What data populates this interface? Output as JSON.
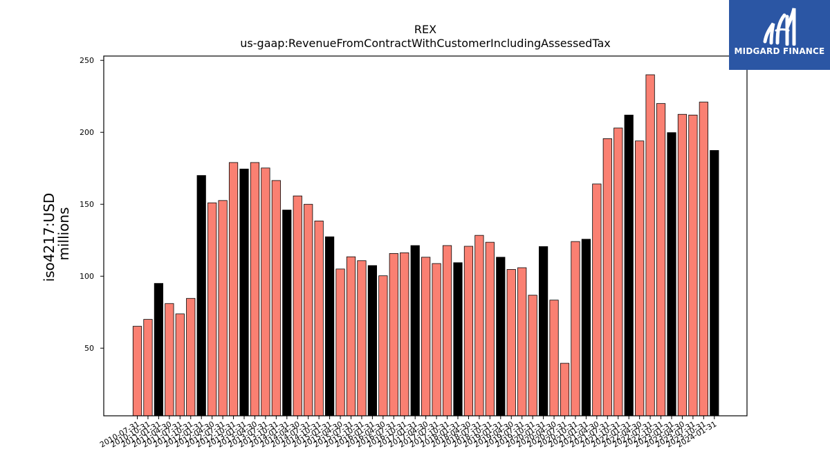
{
  "brand": {
    "name": "MIDGARD FINANCE",
    "color": "#2b56a4"
  },
  "chart_data": {
    "type": "bar",
    "title": "REX",
    "subtitle": "us-gaap:RevenueFromContractWithCustomerIncludingAssessedTax",
    "ylabel": [
      "iso4217:USD",
      "millions"
    ],
    "xlabel": "",
    "ylim": [
      3,
      253
    ],
    "yticks": [
      50,
      100,
      150,
      200,
      250
    ],
    "grid": false,
    "colors": {
      "quarter": "#fa8072",
      "fiscal_year_end": "#000000"
    },
    "categories": [
      "2010-07-31",
      "2010-10-31",
      "2011-01-31",
      "2011-04-30",
      "2011-07-31",
      "2011-10-31",
      "2012-01-31",
      "2012-04-30",
      "2012-07-31",
      "2012-10-31",
      "2013-01-31",
      "2013-04-30",
      "2013-07-31",
      "2013-10-31",
      "2014-01-31",
      "2014-04-30",
      "2014-07-31",
      "2014-10-31",
      "2015-01-31",
      "2015-04-30",
      "2015-07-31",
      "2015-10-31",
      "2016-01-31",
      "2016-04-30",
      "2016-07-31",
      "2016-10-31",
      "2017-01-31",
      "2017-04-30",
      "2017-07-31",
      "2017-10-31",
      "2018-01-31",
      "2018-04-30",
      "2018-07-31",
      "2018-10-31",
      "2019-01-31",
      "2019-04-30",
      "2019-07-31",
      "2019-10-31",
      "2020-01-31",
      "2020-04-30",
      "2020-07-31",
      "2020-10-31",
      "2021-01-31",
      "2021-04-30",
      "2021-07-31",
      "2021-10-31",
      "2022-01-31",
      "2022-04-30",
      "2022-07-31",
      "2022-10-31",
      "2023-01-31",
      "2023-04-30",
      "2023-07-31",
      "2023-10-31",
      "2024-01-31"
    ],
    "values": [
      65.2,
      70.0,
      95.0,
      81.0,
      73.8,
      84.6,
      170.0,
      151.0,
      152.6,
      179.0,
      174.5,
      179.0,
      175.2,
      166.5,
      146.0,
      155.8,
      150.0,
      138.4,
      127.4,
      105.0,
      113.5,
      110.8,
      107.4,
      100.3,
      115.8,
      116.3,
      121.3,
      113.2,
      108.8,
      121.3,
      109.4,
      120.8,
      128.4,
      123.6,
      113.2,
      104.7,
      105.9,
      86.8,
      120.6,
      83.4,
      39.5,
      124.1,
      125.7,
      164.1,
      195.6,
      203.0,
      212.0,
      194.0,
      240.0,
      220.0,
      199.8,
      212.5,
      212.0,
      221.0,
      187.4
    ],
    "fiscal_year_end": [
      false,
      false,
      true,
      false,
      false,
      false,
      true,
      false,
      false,
      false,
      true,
      false,
      false,
      false,
      true,
      false,
      false,
      false,
      true,
      false,
      false,
      false,
      true,
      false,
      false,
      false,
      true,
      false,
      false,
      false,
      true,
      false,
      false,
      false,
      true,
      false,
      false,
      false,
      true,
      false,
      false,
      false,
      true,
      false,
      false,
      false,
      true,
      false,
      false,
      false,
      true,
      false,
      false,
      false,
      true
    ]
  }
}
